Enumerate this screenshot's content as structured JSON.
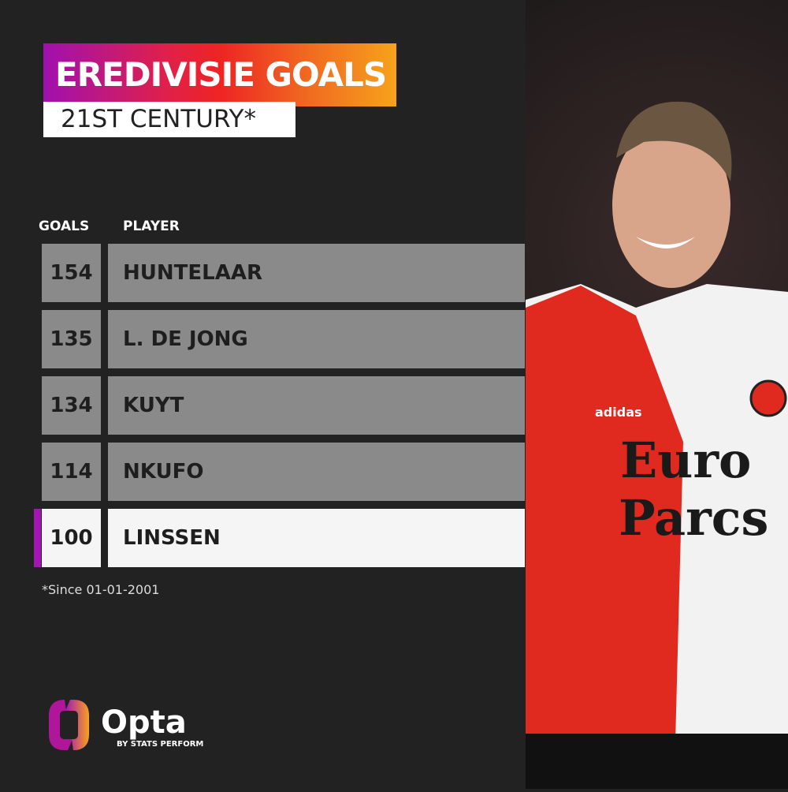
{
  "header": {
    "title": "EREDIVISIE GOALS",
    "subtitle": "21ST CENTURY*"
  },
  "columns": {
    "goals": "GOALS",
    "player": "PLAYER"
  },
  "chart_data": {
    "type": "table",
    "columns": [
      "GOALS",
      "PLAYER"
    ],
    "rows": [
      {
        "goals": "154",
        "player": "HUNTELAAR",
        "highlight": false
      },
      {
        "goals": "135",
        "player": "L. DE JONG",
        "highlight": false
      },
      {
        "goals": "134",
        "player": "KUYT",
        "highlight": false
      },
      {
        "goals": "114",
        "player": "NKUFO",
        "highlight": false
      },
      {
        "goals": "100",
        "player": "LINSSEN",
        "highlight": true
      }
    ]
  },
  "footnote": "*Since 01-01-2001",
  "brand": {
    "name": "Opta",
    "tagline": "BY STATS PERFORM"
  },
  "colors": {
    "background": "#222222",
    "row": "#8a8a8a",
    "highlight_row": "#f5f5f5",
    "accent": "#a416b4",
    "gradient_start": "#a010b0",
    "gradient_end": "#f7a21c"
  },
  "photo": {
    "sponsor": "Euro Parcs",
    "kit_brand": "adidas"
  }
}
